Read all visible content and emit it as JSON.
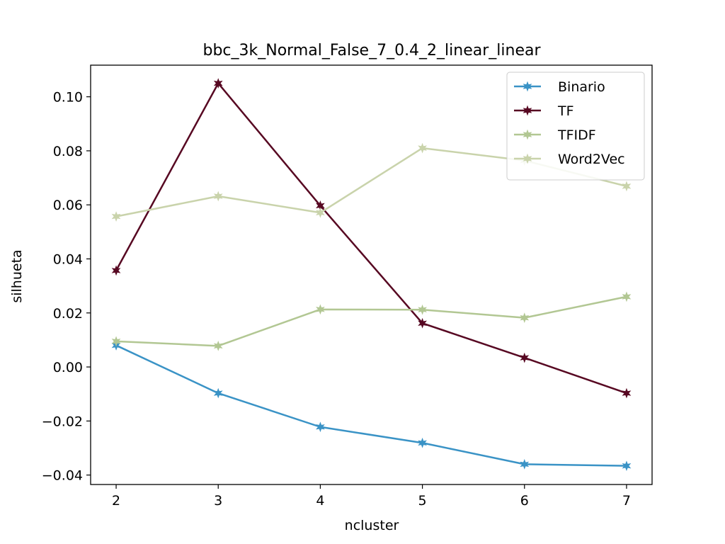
{
  "chart_data": {
    "type": "line",
    "title": "bbc_3k_Normal_False_7_0.4_2_linear_linear",
    "xlabel": "ncluster",
    "ylabel": "silhueta",
    "x": [
      2,
      3,
      4,
      5,
      6,
      7
    ],
    "xlim": [
      1.75,
      7.25
    ],
    "ylim": [
      -0.0435,
      0.1117
    ],
    "xticks": [
      2,
      3,
      4,
      5,
      6,
      7
    ],
    "xtick_labels": [
      "2",
      "3",
      "4",
      "5",
      "6",
      "7"
    ],
    "yticks": [
      -0.04,
      -0.02,
      0.0,
      0.02,
      0.04,
      0.06,
      0.08,
      0.1
    ],
    "ytick_labels": [
      "−0.04",
      "−0.02",
      "0.00",
      "0.02",
      "0.04",
      "0.06",
      "0.08",
      "0.10"
    ],
    "grid": false,
    "legend_position": "top-right",
    "series": [
      {
        "name": "Binario",
        "color": "#3a93c6",
        "marker": "star",
        "values": [
          0.008,
          -0.0097,
          -0.0222,
          -0.0281,
          -0.036,
          -0.0366
        ]
      },
      {
        "name": "TF",
        "color": "#570822",
        "marker": "star",
        "values": [
          0.0357,
          0.105,
          0.0597,
          0.0162,
          0.0034,
          -0.0097
        ]
      },
      {
        "name": "TFIDF",
        "color": "#b2c793",
        "marker": "star",
        "values": [
          0.0095,
          0.0078,
          0.0213,
          0.0212,
          0.0182,
          0.026
        ]
      },
      {
        "name": "Word2Vec",
        "color": "#c9d3ab",
        "marker": "star",
        "values": [
          0.0557,
          0.0632,
          0.0571,
          0.081,
          0.0764,
          0.0669
        ]
      }
    ]
  }
}
